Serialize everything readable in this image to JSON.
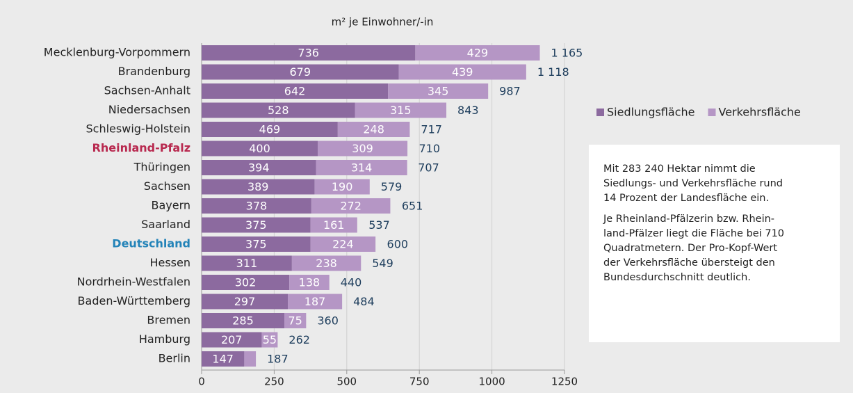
{
  "chart_data": {
    "type": "stacked_barh",
    "title": "m² je Einwohner/-in",
    "categories": [
      "Mecklenburg-Vorpommern",
      "Brandenburg",
      "Sachsen-Anhalt",
      "Niedersachsen",
      "Schleswig-Holstein",
      "Rheinland-Pfalz",
      "Thüringen",
      "Sachsen",
      "Bayern",
      "Saarland",
      "Deutschland",
      "Hessen",
      "Nordrhein-Westfalen",
      "Baden-Württemberg",
      "Bremen",
      "Hamburg",
      "Berlin"
    ],
    "series": [
      {
        "name": "Siedlungsfläche",
        "color": "#8c6a9f",
        "values": [
          736,
          679,
          642,
          528,
          469,
          400,
          394,
          389,
          378,
          375,
          375,
          311,
          302,
          297,
          285,
          207,
          147
        ]
      },
      {
        "name": "Verkehrsfläche",
        "color": "#b596c5",
        "values": [
          429,
          439,
          345,
          315,
          248,
          309,
          314,
          190,
          272,
          161,
          224,
          238,
          138,
          187,
          75,
          55,
          40
        ]
      }
    ],
    "totals": [
      1165,
      1118,
      987,
      843,
      717,
      710,
      707,
      579,
      651,
      537,
      600,
      549,
      440,
      484,
      360,
      262,
      187
    ],
    "total_labels": [
      "1 165",
      "1 118",
      "987",
      "843",
      "717",
      "710",
      "707",
      "579",
      "651",
      "537",
      "600",
      "549",
      "440",
      "484",
      "360",
      "262",
      "187"
    ],
    "highlights": [
      {
        "index": 5,
        "color": "#b8294f"
      },
      {
        "index": 10,
        "color": "#2383b8"
      }
    ],
    "xlim": [
      0,
      1250
    ],
    "xticks": [
      0,
      250,
      500,
      750,
      1000,
      1250
    ],
    "grid": true,
    "legend": "right",
    "annotation": {
      "paragraphs": [
        [
          "Mit 283 240 Hektar nimmt die",
          "Siedlungs- und Verkehrsfläche rund",
          "14 Prozent der Landesfläche ein."
        ],
        [
          "Je Rheinland-Pfälzerin bzw. Rhein-",
          "land-Pfälzer liegt die Fläche bei 710",
          "Quadratmetern. Der Pro-Kopf-Wert",
          "der Verkehrsfläche übersteigt den",
          "Bundesdurchschnitt deutlich."
        ]
      ]
    }
  }
}
